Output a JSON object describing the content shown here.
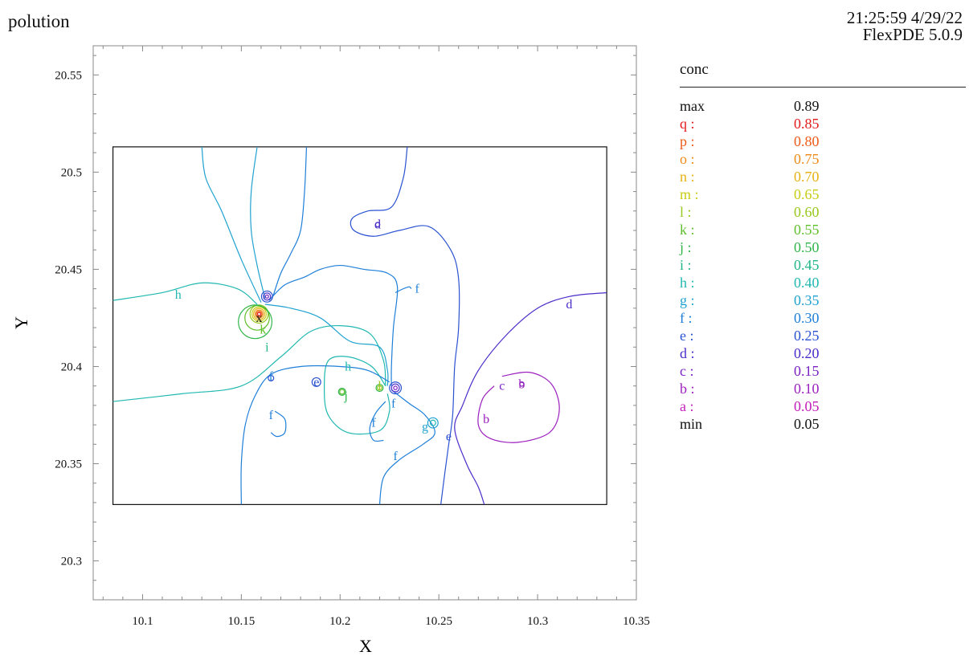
{
  "header": {
    "title": "polution",
    "timestamp": "21:25:59 4/29/22",
    "software": "FlexPDE 5.0.9"
  },
  "chart_data": {
    "type": "contour",
    "title": "polution",
    "xlabel": "X",
    "ylabel": "Y",
    "xlim": [
      10.075,
      10.35
    ],
    "ylim": [
      20.28,
      20.565
    ],
    "x_ticks": [
      "10.1",
      "10.15",
      "10.2",
      "10.25",
      "10.3",
      "10.35"
    ],
    "y_ticks": [
      "20.3",
      "20.35",
      "20.4",
      "20.45",
      "20.5",
      "20.55"
    ],
    "domain": {
      "x": [
        10.085,
        10.335
      ],
      "y": [
        20.329,
        20.513
      ]
    },
    "variable": "conc",
    "max": "0.89",
    "min": "0.05",
    "levels": [
      {
        "label": "q",
        "value": 0.85,
        "color": "#e31a1c"
      },
      {
        "label": "p",
        "value": 0.8,
        "color": "#ef5a16"
      },
      {
        "label": "o",
        "value": 0.75,
        "color": "#ec8a17"
      },
      {
        "label": "n",
        "value": 0.7,
        "color": "#e6b212"
      },
      {
        "label": "m",
        "value": 0.65,
        "color": "#c7cc12"
      },
      {
        "label": "l",
        "value": 0.6,
        "color": "#98c81c"
      },
      {
        "label": "k",
        "value": 0.55,
        "color": "#5fbf2a"
      },
      {
        "label": "j",
        "value": 0.5,
        "color": "#2fb54a"
      },
      {
        "label": "i",
        "value": 0.45,
        "color": "#22b58a"
      },
      {
        "label": "h",
        "value": 0.4,
        "color": "#20b8b0"
      },
      {
        "label": "g",
        "value": 0.35,
        "color": "#1fa2cf"
      },
      {
        "label": "f",
        "value": 0.3,
        "color": "#1e7fd9"
      },
      {
        "label": "e",
        "value": 0.25,
        "color": "#2a52d1"
      },
      {
        "label": "d",
        "value": 0.2,
        "color": "#4b2cc9"
      },
      {
        "label": "c",
        "value": 0.15,
        "color": "#7a22c4"
      },
      {
        "label": "b",
        "value": 0.1,
        "color": "#9c1fbe"
      },
      {
        "label": "a",
        "value": 0.05,
        "color": "#c21db8"
      }
    ],
    "contours": [
      {
        "level": "h",
        "points": [
          [
            10.085,
            20.434
          ],
          [
            10.11,
            20.438
          ],
          [
            10.13,
            20.443
          ],
          [
            10.148,
            20.44
          ],
          [
            10.158,
            20.432
          ]
        ]
      },
      {
        "level": "h",
        "points": [
          [
            10.085,
            20.382
          ],
          [
            10.12,
            20.386
          ],
          [
            10.15,
            20.39
          ],
          [
            10.17,
            20.405
          ],
          [
            10.185,
            20.418
          ],
          [
            10.2,
            20.421
          ],
          [
            10.215,
            20.417
          ],
          [
            10.222,
            20.403
          ],
          [
            10.223,
            20.39
          ]
        ]
      },
      {
        "level": "h",
        "points": [
          [
            10.223,
            20.39
          ],
          [
            10.216,
            20.4
          ],
          [
            10.204,
            20.405
          ],
          [
            10.194,
            20.403
          ],
          [
            10.192,
            20.389
          ],
          [
            10.194,
            20.375
          ],
          [
            10.204,
            20.366
          ],
          [
            10.22,
            20.367
          ],
          [
            10.225,
            20.377
          ],
          [
            10.224,
            20.386
          ]
        ]
      },
      {
        "level": "g",
        "points": [
          [
            10.162,
            20.435
          ],
          [
            10.158,
            20.452
          ],
          [
            10.155,
            20.47
          ],
          [
            10.155,
            20.49
          ],
          [
            10.158,
            20.513
          ]
        ]
      },
      {
        "level": "g",
        "points": [
          [
            10.16,
            20.433
          ],
          [
            10.15,
            20.455
          ],
          [
            10.14,
            20.48
          ],
          [
            10.132,
            20.497
          ],
          [
            10.13,
            20.513
          ]
        ]
      },
      {
        "level": "g",
        "points": [
          [
            10.162,
            20.432
          ],
          [
            10.175,
            20.43
          ],
          [
            10.19,
            20.425
          ],
          [
            10.205,
            20.413
          ],
          [
            10.22,
            20.41
          ],
          [
            10.224,
            20.398
          ],
          [
            10.224,
            20.39
          ]
        ]
      },
      {
        "level": "f",
        "points": [
          [
            10.164,
            20.434
          ],
          [
            10.172,
            20.442
          ],
          [
            10.182,
            20.446
          ],
          [
            10.19,
            20.45
          ],
          [
            10.2,
            20.452
          ],
          [
            10.212,
            20.45
          ],
          [
            10.224,
            20.448
          ],
          [
            10.229,
            20.441
          ],
          [
            10.227,
            20.42
          ],
          [
            10.226,
            20.4
          ],
          [
            10.226,
            20.39
          ]
        ]
      },
      {
        "level": "f",
        "points": [
          [
            10.166,
            20.436
          ],
          [
            10.17,
            20.448
          ],
          [
            10.175,
            20.458
          ],
          [
            10.18,
            20.47
          ],
          [
            10.182,
            20.49
          ],
          [
            10.183,
            20.513
          ]
        ]
      },
      {
        "level": "f",
        "points": [
          [
            10.225,
            20.392
          ],
          [
            10.214,
            20.398
          ],
          [
            10.2,
            20.4
          ],
          [
            10.18,
            20.4
          ],
          [
            10.165,
            20.396
          ],
          [
            10.157,
            20.385
          ],
          [
            10.152,
            20.37
          ],
          [
            10.15,
            20.35
          ],
          [
            10.15,
            20.329
          ]
        ]
      },
      {
        "level": "f",
        "points": [
          [
            10.226,
            20.388
          ],
          [
            10.235,
            20.381
          ],
          [
            10.243,
            20.375
          ],
          [
            10.248,
            20.366
          ],
          [
            10.242,
            20.36
          ],
          [
            10.23,
            20.352
          ],
          [
            10.222,
            20.343
          ],
          [
            10.22,
            20.329
          ]
        ]
      },
      {
        "level": "f",
        "points": [
          [
            10.228,
            20.438
          ],
          [
            10.232,
            20.44
          ],
          [
            10.235,
            20.441
          ],
          [
            10.236,
            20.44
          ]
        ]
      },
      {
        "level": "f",
        "points": [
          [
            10.167,
            20.377
          ],
          [
            10.172,
            20.373
          ],
          [
            10.172,
            20.366
          ],
          [
            10.168,
            20.364
          ],
          [
            10.165,
            20.366
          ]
        ]
      },
      {
        "level": "f",
        "points": [
          [
            10.223,
            20.382
          ],
          [
            10.218,
            20.376
          ],
          [
            10.215,
            20.368
          ],
          [
            10.217,
            20.362
          ],
          [
            10.222,
            20.362
          ]
        ]
      },
      {
        "level": "e",
        "points": [
          [
            10.234,
            20.513
          ],
          [
            10.232,
            20.497
          ],
          [
            10.226,
            20.482
          ],
          [
            10.214,
            20.48
          ],
          [
            10.206,
            20.476
          ],
          [
            10.207,
            20.47
          ],
          [
            10.217,
            20.467
          ],
          [
            10.23,
            20.47
          ],
          [
            10.245,
            20.472
          ],
          [
            10.256,
            20.46
          ],
          [
            10.26,
            20.445
          ],
          [
            10.26,
            20.42
          ],
          [
            10.258,
            20.4
          ],
          [
            10.257,
            20.375
          ],
          [
            10.255,
            20.36
          ],
          [
            10.253,
            20.345
          ],
          [
            10.251,
            20.329
          ]
        ]
      },
      {
        "level": "d",
        "points": [
          [
            10.335,
            20.438
          ],
          [
            10.316,
            20.436
          ],
          [
            10.3,
            20.43
          ],
          [
            10.284,
            20.416
          ],
          [
            10.27,
            20.398
          ],
          [
            10.262,
            20.38
          ],
          [
            10.258,
            20.368
          ],
          [
            10.264,
            20.35
          ],
          [
            10.27,
            20.338
          ],
          [
            10.273,
            20.329
          ]
        ]
      },
      {
        "level": "b",
        "points": [
          [
            10.282,
            20.395
          ],
          [
            10.296,
            20.397
          ],
          [
            10.307,
            20.391
          ],
          [
            10.311,
            20.378
          ],
          [
            10.306,
            20.366
          ],
          [
            10.29,
            20.361
          ],
          [
            10.276,
            20.363
          ],
          [
            10.27,
            20.37
          ],
          [
            10.272,
            20.383
          ],
          [
            10.278,
            20.39
          ]
        ]
      }
    ],
    "rings": [
      {
        "level": "q",
        "cx": 10.159,
        "cy": 20.427,
        "r": 0.0008
      },
      {
        "level": "p",
        "cx": 10.159,
        "cy": 20.427,
        "r": 0.0014
      },
      {
        "level": "o",
        "cx": 10.159,
        "cy": 20.427,
        "r": 0.002
      },
      {
        "level": "n",
        "cx": 10.159,
        "cy": 20.427,
        "r": 0.0028
      },
      {
        "level": "m",
        "cx": 10.159,
        "cy": 20.427,
        "r": 0.0036
      },
      {
        "level": "l",
        "cx": 10.159,
        "cy": 20.427,
        "r": 0.0046
      },
      {
        "level": "k",
        "cx": 10.158,
        "cy": 20.425,
        "r": 0.0062
      },
      {
        "level": "j",
        "cx": 10.157,
        "cy": 20.423,
        "r": 0.0085
      },
      {
        "level": "d",
        "cx": 10.163,
        "cy": 20.436,
        "r": 0.0018
      },
      {
        "level": "e",
        "cx": 10.163,
        "cy": 20.436,
        "r": 0.0028
      },
      {
        "level": "c",
        "cx": 10.163,
        "cy": 20.436,
        "r": 0.0008
      },
      {
        "level": "e",
        "cx": 10.188,
        "cy": 20.392,
        "r": 0.0022
      },
      {
        "level": "j",
        "cx": 10.201,
        "cy": 20.387,
        "r": 0.0018
      },
      {
        "level": "k",
        "cx": 10.201,
        "cy": 20.387,
        "r": 0.0012
      },
      {
        "level": "j",
        "cx": 10.22,
        "cy": 20.389,
        "r": 0.0018
      },
      {
        "level": "l",
        "cx": 10.22,
        "cy": 20.389,
        "r": 0.0011
      },
      {
        "level": "d",
        "cx": 10.228,
        "cy": 20.389,
        "r": 0.002
      },
      {
        "level": "e",
        "cx": 10.228,
        "cy": 20.389,
        "r": 0.003
      },
      {
        "level": "c",
        "cx": 10.228,
        "cy": 20.389,
        "r": 0.0009
      },
      {
        "level": "g",
        "cx": 10.247,
        "cy": 20.371,
        "r": 0.0026
      },
      {
        "level": "h",
        "cx": 10.247,
        "cy": 20.371,
        "r": 0.0014
      },
      {
        "level": "d",
        "cx": 10.219,
        "cy": 20.473,
        "r": 0.0011
      },
      {
        "level": "e",
        "cx": 10.165,
        "cy": 20.394,
        "r": 0.0014
      },
      {
        "level": "c",
        "cx": 10.292,
        "cy": 20.391,
        "r": 0.0011
      }
    ],
    "annotations": [
      {
        "text": "h",
        "x": 10.118,
        "y": 20.437
      },
      {
        "text": "i",
        "x": 10.163,
        "y": 20.41
      },
      {
        "text": "k",
        "x": 10.161,
        "y": 20.419
      },
      {
        "text": "x",
        "x": 10.159,
        "y": 20.425
      },
      {
        "text": "d",
        "x": 10.219,
        "y": 20.473
      },
      {
        "text": "f",
        "x": 10.239,
        "y": 20.44
      },
      {
        "text": "d",
        "x": 10.316,
        "y": 20.432
      },
      {
        "text": "h",
        "x": 10.204,
        "y": 20.4
      },
      {
        "text": "f",
        "x": 10.165,
        "y": 20.395
      },
      {
        "text": "e",
        "x": 10.188,
        "y": 20.392
      },
      {
        "text": "j",
        "x": 10.203,
        "y": 20.385
      },
      {
        "text": "l",
        "x": 10.22,
        "y": 20.39
      },
      {
        "text": "f",
        "x": 10.165,
        "y": 20.375
      },
      {
        "text": "f",
        "x": 10.217,
        "y": 20.371
      },
      {
        "text": "g",
        "x": 10.243,
        "y": 20.369
      },
      {
        "text": "f",
        "x": 10.227,
        "y": 20.381
      },
      {
        "text": "f",
        "x": 10.228,
        "y": 20.354
      },
      {
        "text": "e",
        "x": 10.255,
        "y": 20.364
      },
      {
        "text": "c",
        "x": 10.282,
        "y": 20.39
      },
      {
        "text": "b",
        "x": 10.292,
        "y": 20.391
      },
      {
        "text": "b",
        "x": 10.274,
        "y": 20.373
      }
    ]
  },
  "legend": {
    "title": "conc",
    "rows": [
      {
        "key": "max",
        "value": "0.89",
        "color": "#111111"
      },
      {
        "key": "q :",
        "value": "0.85",
        "color": "#e31a1c"
      },
      {
        "key": "p :",
        "value": "0.80",
        "color": "#ef5a16"
      },
      {
        "key": "o :",
        "value": "0.75",
        "color": "#ec8a17"
      },
      {
        "key": "n :",
        "value": "0.70",
        "color": "#e6b212"
      },
      {
        "key": "m :",
        "value": "0.65",
        "color": "#c7cc12"
      },
      {
        "key": "l :",
        "value": "0.60",
        "color": "#98c81c"
      },
      {
        "key": "k :",
        "value": "0.55",
        "color": "#5fbf2a"
      },
      {
        "key": "j :",
        "value": "0.50",
        "color": "#2fb54a"
      },
      {
        "key": "i :",
        "value": "0.45",
        "color": "#22b58a"
      },
      {
        "key": "h :",
        "value": "0.40",
        "color": "#20b8b0"
      },
      {
        "key": "g :",
        "value": "0.35",
        "color": "#1fa2cf"
      },
      {
        "key": "f :",
        "value": "0.30",
        "color": "#1e7fd9"
      },
      {
        "key": "e :",
        "value": "0.25",
        "color": "#2a52d1"
      },
      {
        "key": "d :",
        "value": "0.20",
        "color": "#4b2cc9"
      },
      {
        "key": "c :",
        "value": "0.15",
        "color": "#7a22c4"
      },
      {
        "key": "b :",
        "value": "0.10",
        "color": "#9c1fbe"
      },
      {
        "key": "a :",
        "value": "0.05",
        "color": "#c21db8"
      },
      {
        "key": "min",
        "value": "0.05",
        "color": "#111111"
      }
    ]
  }
}
